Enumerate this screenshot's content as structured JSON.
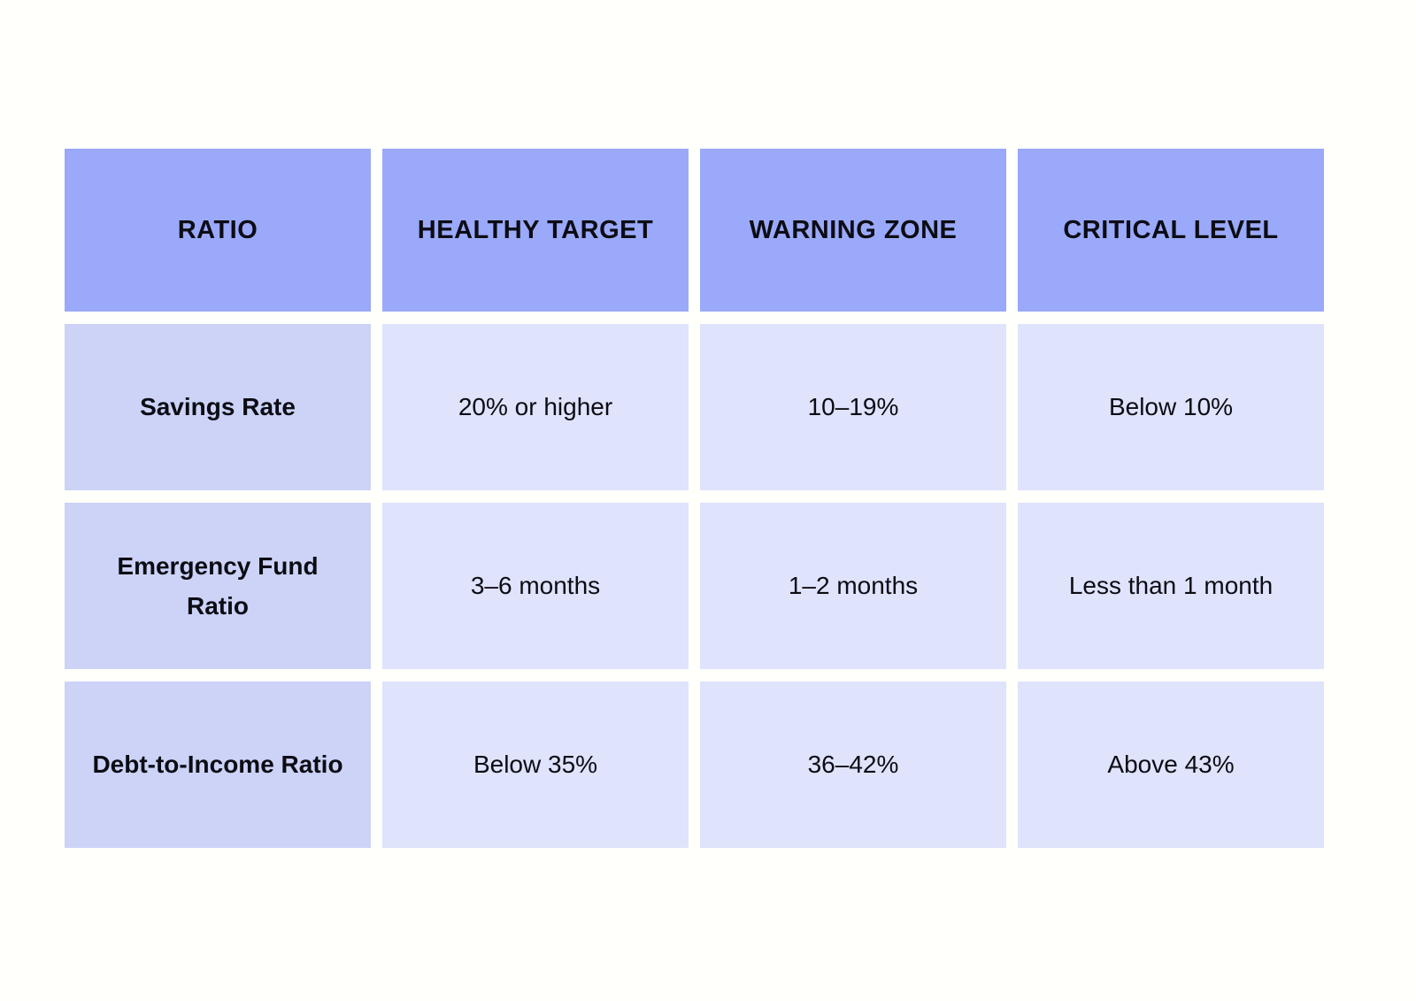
{
  "colors": {
    "page_bg": "#FFFFFB",
    "header_bg": "#9AA9FA",
    "label_bg": "#CCD3F7",
    "cell_bg": "#DFE3FB",
    "text": "#0C0C14"
  },
  "chart_data": {
    "type": "table",
    "title": "",
    "columns": [
      "RATIO",
      "HEALTHY TARGET",
      "WARNING ZONE",
      "CRITICAL LEVEL"
    ],
    "rows": [
      [
        "Savings Rate",
        "20% or higher",
        "10–19%",
        "Below 10%"
      ],
      [
        "Emergency Fund Ratio",
        "3–6 months",
        "1–2 months",
        "Less than 1 month"
      ],
      [
        "Debt-to-Income Ratio",
        "Below 35%",
        "36–42%",
        "Above 43%"
      ]
    ],
    "layout": {
      "header_style": "bold uppercase on periwinkle blue",
      "label_column_style": "bold on light periwinkle",
      "data_cell_style": "regular on pale lavender",
      "grid": "white gutters between cells, no borders"
    }
  }
}
